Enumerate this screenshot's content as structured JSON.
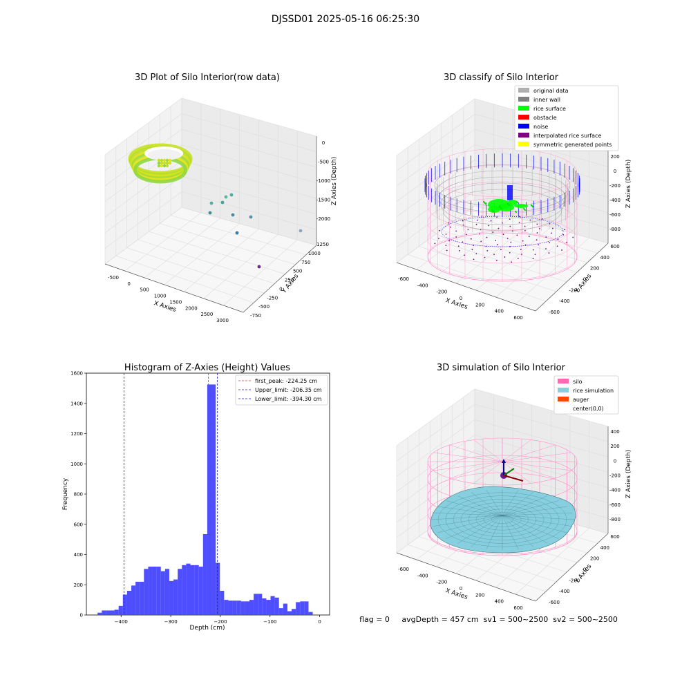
{
  "figure": {
    "suptitle": "DJSSD01 2025-05-16 06:25:30",
    "footer": "flag = 0     avgDepth = 457 cm  sv1 = 500~2500  sv2 = 500~2500"
  },
  "chart_data": [
    {
      "type": "scatter",
      "subtype": "3d",
      "title": "3D Plot of Silo Interior(row data)",
      "xlabel": "X Axies",
      "ylabel": "Y Axies",
      "zlabel": "Z Axies (Depth)",
      "x_ticks": [
        "-500",
        "0",
        "500",
        "1000",
        "1500",
        "2000",
        "2500",
        "3000"
      ],
      "y_ticks": [
        "-750",
        "-500",
        "-250",
        "0",
        "250",
        "500",
        "750",
        "1000",
        "1250"
      ],
      "z_ticks": [
        "-2000",
        "-1500",
        "-1000",
        "-500",
        "0"
      ],
      "xlim": [
        -600,
        3300
      ],
      "ylim": [
        -800,
        1350
      ],
      "zlim": [
        -2300,
        100
      ],
      "colormap": "viridis",
      "series": [
        {
          "cluster": "dense ring",
          "approx_x_range": [
            -400,
            300
          ],
          "approx_y_range": [
            -400,
            400
          ],
          "approx_z_range": [
            -500,
            0
          ],
          "color": "#c5e32a"
        },
        {
          "cluster": "scattered outliers",
          "points": [
            {
              "x": 1050,
              "y": 600,
              "z": -1000,
              "color": "#50b0a0"
            },
            {
              "x": 1200,
              "y": 400,
              "z": -1100,
              "color": "#4aa39a"
            },
            {
              "x": 1300,
              "y": 650,
              "z": -1050,
              "color": "#5cb5a5"
            },
            {
              "x": 900,
              "y": 250,
              "z": -1250,
              "color": "#3f8f95"
            },
            {
              "x": 1400,
              "y": 200,
              "z": -1300,
              "color": "#458fa0"
            },
            {
              "x": 1900,
              "y": 100,
              "z": -1400,
              "color": "#5a8fa5"
            },
            {
              "x": 1600,
              "y": -300,
              "z": -1500,
              "color": "#3a7da0"
            },
            {
              "x": 3100,
              "y": 900,
              "z": -1600,
              "color": "#8aa6c0"
            },
            {
              "x": 2200,
              "y": -700,
              "z": -2000,
              "color": "#6a2a80"
            }
          ]
        }
      ]
    },
    {
      "type": "scatter",
      "subtype": "3d",
      "title": "3D classify of Silo Interior",
      "xlabel": "X Axies",
      "ylabel": "Y Axies",
      "zlabel": "Z Axies (Depth)",
      "x_ticks": [
        "-600",
        "-400",
        "-200",
        "0",
        "200",
        "400",
        "600"
      ],
      "y_ticks": [
        "-600",
        "-400",
        "-200",
        "0",
        "200",
        "400",
        "600"
      ],
      "z_ticks": [
        "-800",
        "-600",
        "-400",
        "-200",
        "0",
        "200"
      ],
      "xlim": [
        -650,
        650
      ],
      "ylim": [
        -650,
        650
      ],
      "zlim": [
        -900,
        300
      ],
      "legend_position": "top-right",
      "legend": [
        {
          "label": "original data",
          "color": "#b0b0b0"
        },
        {
          "label": "inner wall",
          "color": "#808080"
        },
        {
          "label": "rice surface",
          "color": "#00ff00"
        },
        {
          "label": "obstacle",
          "color": "#ff0000"
        },
        {
          "label": "noise",
          "color": "#0000ff"
        },
        {
          "label": "interpolated rice surface",
          "color": "#800080"
        },
        {
          "label": "symmetric generated points",
          "color": "#ffff00"
        }
      ],
      "elements": {
        "silo_wireframe_color": "#ff8fc8",
        "blue_rim_depth_approx": -400,
        "rice_surface_depth_approx": -400,
        "silo_bottom_approx": -900
      }
    },
    {
      "type": "bar",
      "subtype": "histogram",
      "title": "Histogram of Z-Axies (Height) Values",
      "xlabel": "Depth (cm)",
      "ylabel": "Frequency",
      "xlim": [
        -470,
        20
      ],
      "ylim": [
        0,
        1600
      ],
      "x_ticks": [
        -400,
        -300,
        -200,
        -100,
        0
      ],
      "y_ticks": [
        0,
        200,
        400,
        600,
        800,
        1000,
        1200,
        1400,
        1600
      ],
      "bar_color": "#4444ff",
      "bin_start": -447.5,
      "bin_width": 8.5,
      "values": [
        15,
        30,
        30,
        30,
        35,
        60,
        135,
        160,
        195,
        220,
        220,
        305,
        320,
        320,
        320,
        290,
        305,
        225,
        235,
        305,
        330,
        340,
        330,
        330,
        320,
        535,
        1525,
        1525,
        345,
        160,
        100,
        95,
        95,
        95,
        90,
        90,
        100,
        140,
        140,
        110,
        100,
        125,
        115,
        45,
        75,
        25,
        40,
        85,
        90,
        90,
        20
      ],
      "vlines": [
        {
          "x": -224.25,
          "label": "first_peak: -224.25 cm",
          "color": "#e03030"
        },
        {
          "x": -206.35,
          "label": "Upper_limit: -206.35 cm",
          "color": "#2020cc"
        },
        {
          "x": -394.3,
          "label": "Lower_limit: -394.30 cm",
          "color": "#2020cc"
        }
      ],
      "legend_position": "top-right"
    },
    {
      "type": "area",
      "subtype": "3d surface",
      "title": "3D simulation of Silo Interior",
      "xlabel": "X Axies",
      "ylabel": "Y Axies",
      "zlabel": "Z Axies (Depth)",
      "x_ticks": [
        "-600",
        "-400",
        "-200",
        "0",
        "200",
        "400",
        "600"
      ],
      "y_ticks": [
        "-600",
        "-400",
        "-200",
        "0",
        "200",
        "400",
        "600"
      ],
      "z_ticks": [
        "-800",
        "-600",
        "-400",
        "-200",
        "0",
        "200",
        "400"
      ],
      "xlim": [
        -650,
        650
      ],
      "ylim": [
        -650,
        650
      ],
      "zlim": [
        -900,
        450
      ],
      "legend_position": "top-right",
      "legend": [
        {
          "label": "silo",
          "color": "#ff69b4",
          "marker": "patch"
        },
        {
          "label": "rice simulation",
          "color": "#87cedf",
          "marker": "patch"
        },
        {
          "label": "auger",
          "color": "#ff4500",
          "marker": "patch"
        },
        {
          "label": "center(0,0)",
          "color": "#ffffff",
          "marker": "none"
        }
      ],
      "elements": {
        "rice_surface_depth_approx": -450,
        "silo_wireframe_color": "#ff8fc8",
        "auger_center": [
          0,
          0,
          0
        ]
      }
    }
  ]
}
